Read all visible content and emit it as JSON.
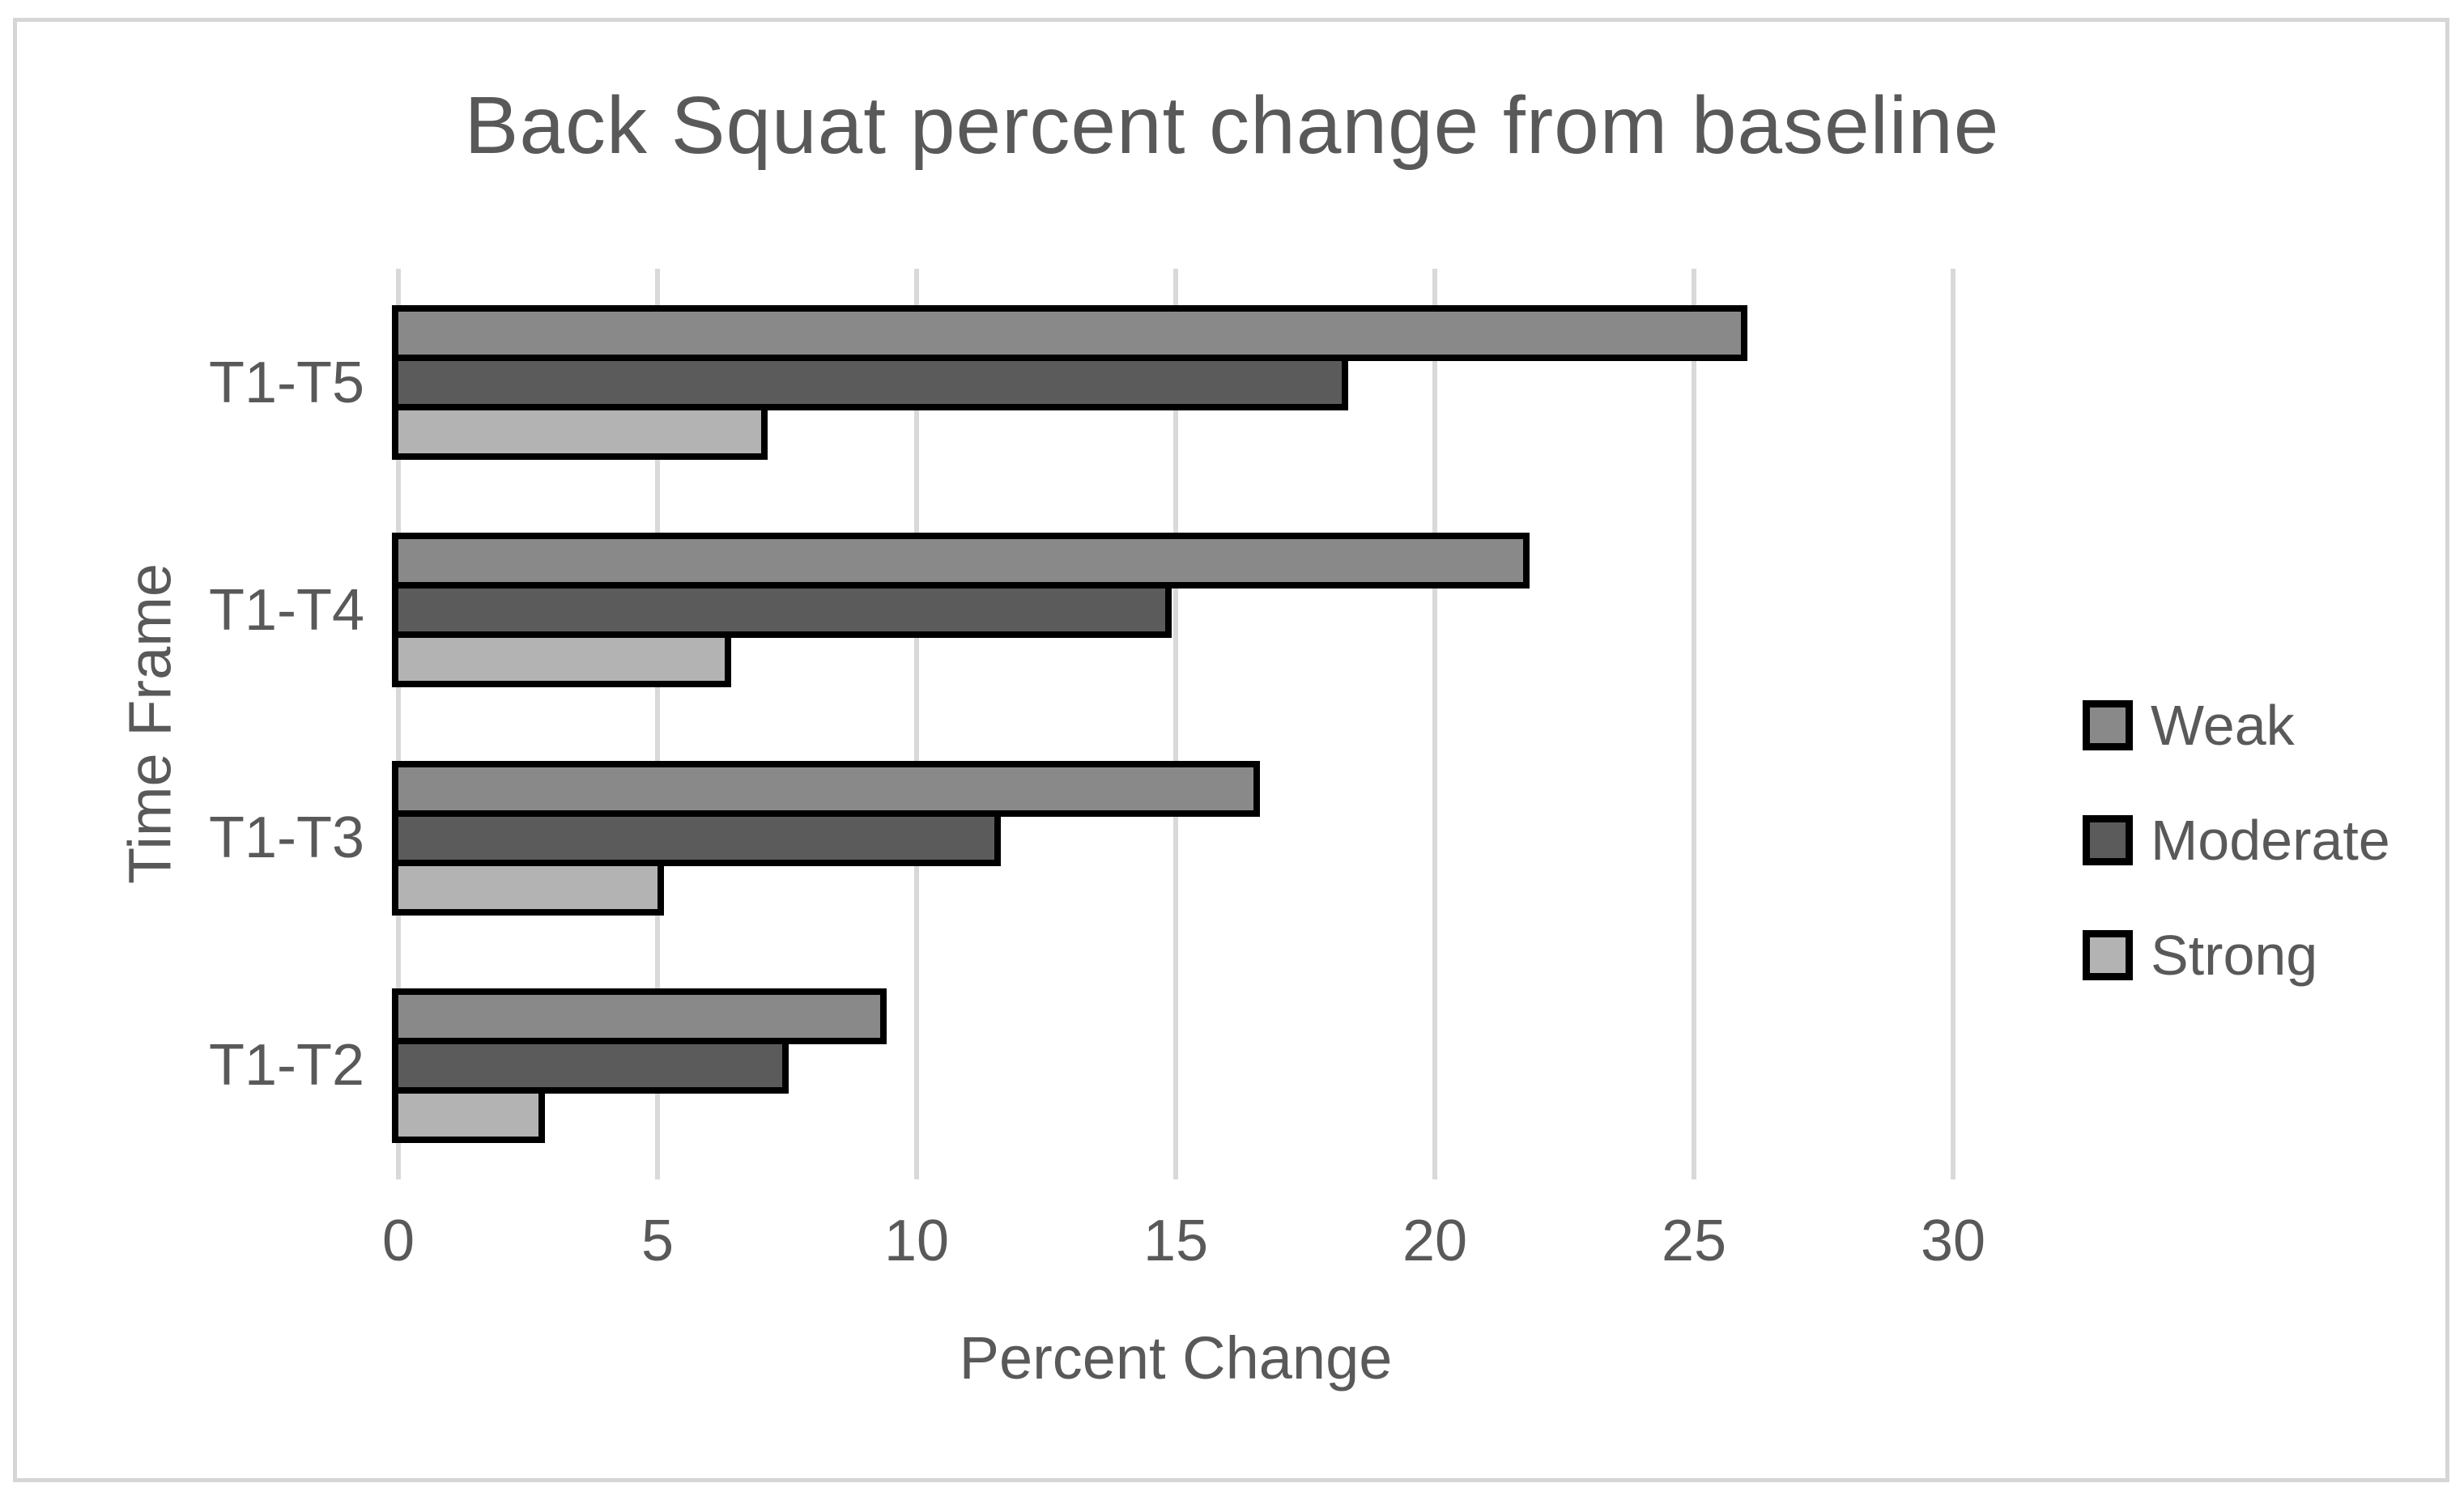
{
  "title": "Back Squat percent change from baseline",
  "chart_data": {
    "type": "bar",
    "orientation": "horizontal",
    "title": "Back Squat percent change from baseline",
    "xlabel": "Percent Change",
    "ylabel": "Time Frame",
    "xlim": [
      0,
      30
    ],
    "x_ticks": [
      "0",
      "5",
      "10",
      "15",
      "20",
      "25",
      "30"
    ],
    "grid": true,
    "legend_position": "right",
    "categories": [
      "T1-T5",
      "T1-T4",
      "T1-T3",
      "T1-T2"
    ],
    "series": [
      {
        "name": "Weak",
        "color": "#898989",
        "values": [
          25.9,
          21.7,
          16.5,
          9.3
        ]
      },
      {
        "name": "Moderate",
        "color": "#5b5b5b",
        "values": [
          18.2,
          14.8,
          11.5,
          7.4
        ]
      },
      {
        "name": "Strong",
        "color": "#b3b3b3",
        "values": [
          7.0,
          6.3,
          5.0,
          2.7
        ]
      }
    ],
    "bar_border_color": "#000000",
    "gridline_color": "#d9d9d9",
    "text_color": "#595959"
  }
}
